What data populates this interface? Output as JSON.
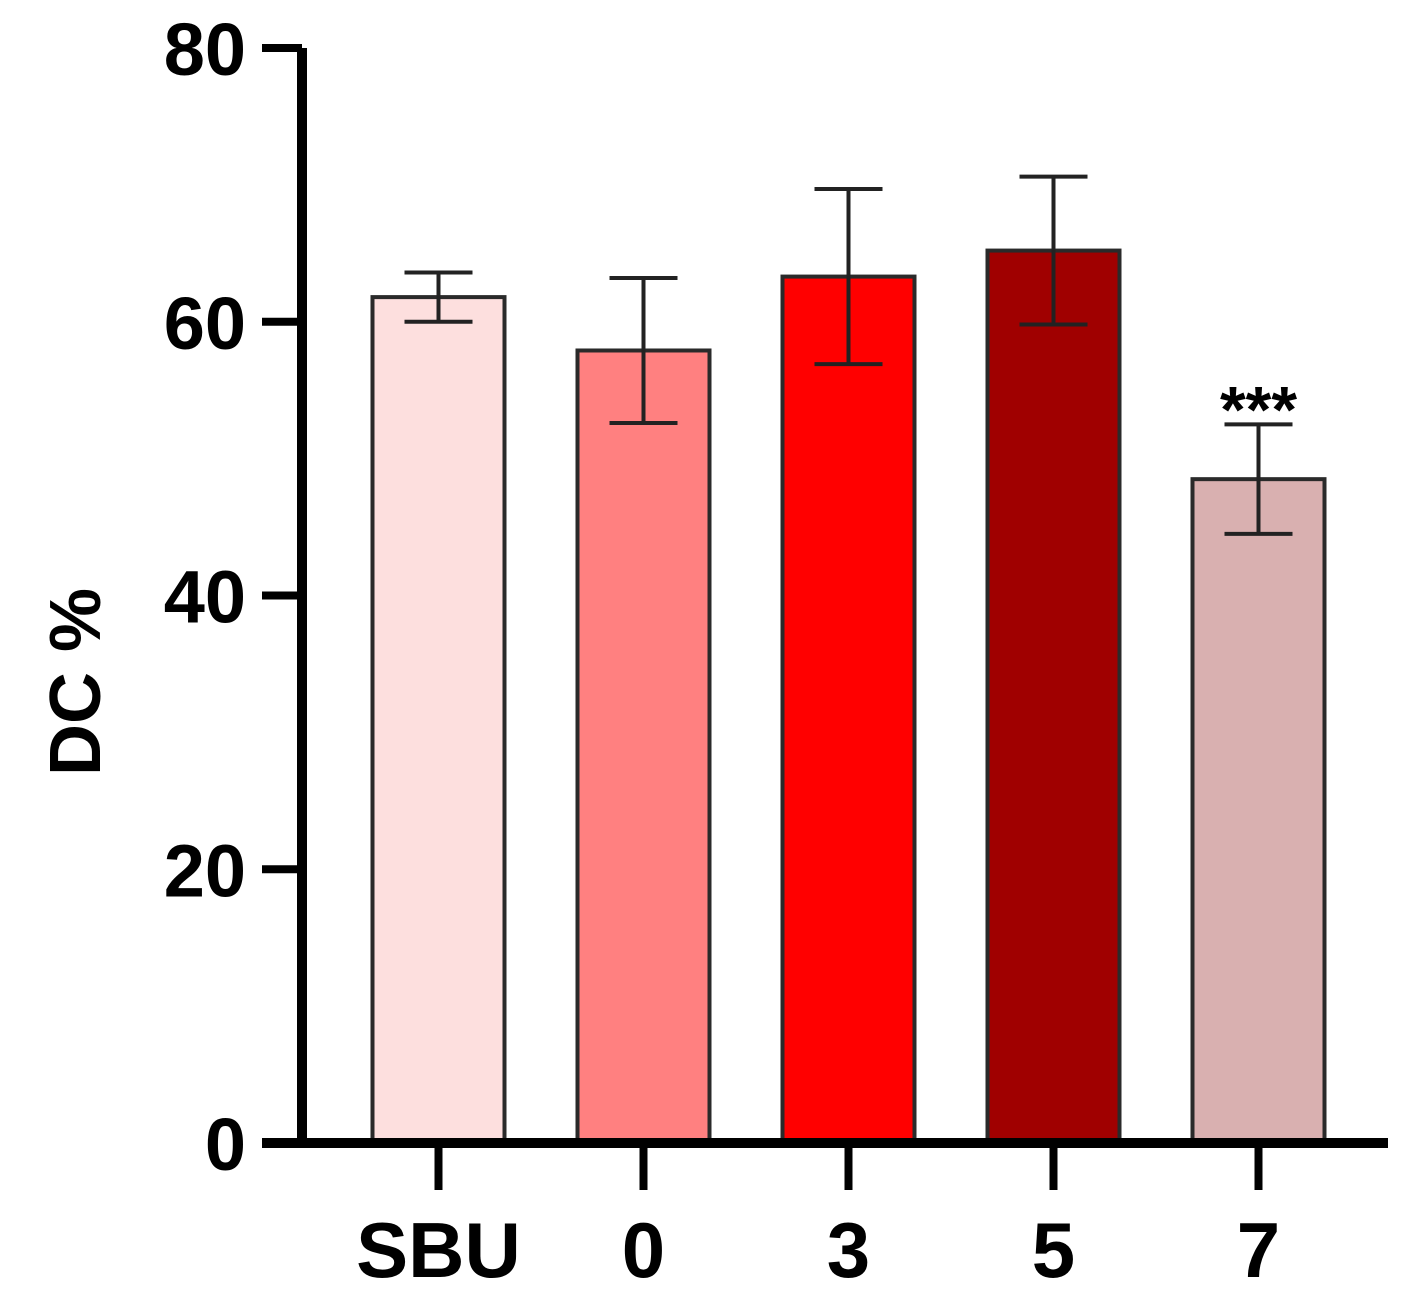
{
  "chart_data": {
    "type": "bar",
    "categories": [
      "SBU",
      "0",
      "3",
      "5",
      "7"
    ],
    "values": [
      61.8,
      57.9,
      63.3,
      65.2,
      48.5
    ],
    "errors": [
      1.8,
      5.3,
      6.4,
      5.4,
      4.0
    ],
    "colors": [
      "#fddfde",
      "#ff8080",
      "#ff0000",
      "#a00000",
      "#d9b0b0"
    ],
    "annotations": [
      {
        "category": "7",
        "text": "***"
      }
    ],
    "title": "",
    "xlabel": "",
    "ylabel": "DC %",
    "ylim": [
      0,
      80
    ],
    "yticks": [
      0,
      20,
      40,
      60,
      80
    ],
    "grid": false,
    "legend": "none"
  }
}
